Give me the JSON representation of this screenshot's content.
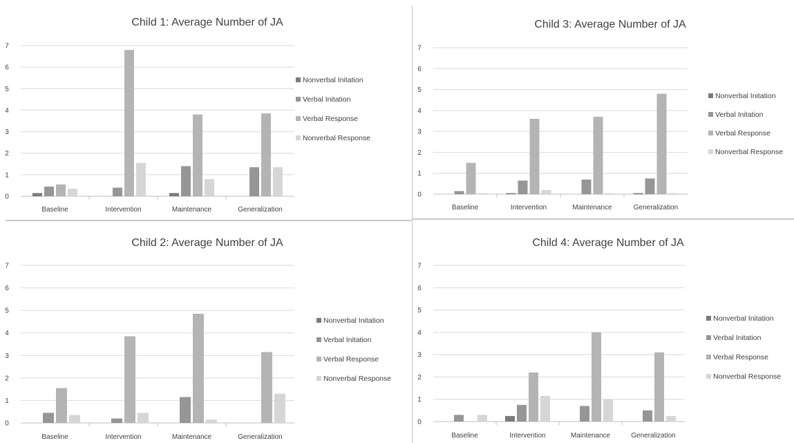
{
  "legend_entries": [
    "Nonverbal Initation",
    "Verbal Initation",
    "Verbal Response",
    "Nonverbal Response"
  ],
  "series_colors": [
    "#7b7b7b",
    "#969696",
    "#b4b4b4",
    "#d6d6d6"
  ],
  "chart_data": [
    {
      "type": "bar",
      "title": "Child 1: Average Number of JA",
      "categories": [
        "Baseline",
        "Intervention",
        "Maintenance",
        "Generalization"
      ],
      "yticks": [
        "0",
        "1",
        "2",
        "3",
        "4",
        "5",
        "6",
        "7"
      ],
      "ylim": [
        0,
        7
      ],
      "grid": true,
      "legend_position": "right",
      "series": [
        {
          "name": "Nonverbal Initation",
          "values": [
            0.15,
            0,
            0.15,
            0
          ]
        },
        {
          "name": "Verbal Initation",
          "values": [
            0.45,
            0.4,
            1.4,
            1.35
          ]
        },
        {
          "name": "Verbal Response",
          "values": [
            0.55,
            6.8,
            3.8,
            3.85
          ]
        },
        {
          "name": "Nonverbal Response",
          "values": [
            0.35,
            1.55,
            0.8,
            1.35
          ]
        }
      ]
    },
    {
      "type": "bar",
      "title": "Child 3: Average Number of JA",
      "categories": [
        "Baseline",
        "Intervention",
        "Maintenance",
        "Generalization"
      ],
      "yticks": [
        "0",
        "1",
        "2",
        "3",
        "4",
        "5",
        "6",
        "7"
      ],
      "ylim": [
        0,
        7
      ],
      "grid": true,
      "legend_position": "right",
      "series": [
        {
          "name": "Nonverbal Initation",
          "values": [
            0,
            0.05,
            0,
            0.05
          ]
        },
        {
          "name": "Verbal Initation",
          "values": [
            0.15,
            0.65,
            0.7,
            0.75
          ]
        },
        {
          "name": "Verbal Response",
          "values": [
            1.5,
            3.6,
            3.7,
            4.8
          ]
        },
        {
          "name": "Nonverbal Response",
          "values": [
            0.05,
            0.2,
            0.05,
            0.05
          ]
        }
      ]
    },
    {
      "type": "bar",
      "title": "Child 2: Average Number of JA",
      "categories": [
        "Baseline",
        "Intervention",
        "Maintenance",
        "Generalization"
      ],
      "yticks": [
        "0",
        "1",
        "2",
        "3",
        "4",
        "5",
        "6",
        "7"
      ],
      "ylim": [
        0,
        7
      ],
      "grid": true,
      "legend_position": "right",
      "series": [
        {
          "name": "Nonverbal Initation",
          "values": [
            0,
            0,
            0,
            0
          ]
        },
        {
          "name": "Verbal Initation",
          "values": [
            0.45,
            0.2,
            1.15,
            0
          ]
        },
        {
          "name": "Verbal Response",
          "values": [
            1.55,
            3.85,
            4.85,
            3.15
          ]
        },
        {
          "name": "Nonverbal Response",
          "values": [
            0.35,
            0.45,
            0.15,
            1.3
          ]
        }
      ]
    },
    {
      "type": "bar",
      "title": "Child 4: Average Number of JA",
      "categories": [
        "Baseline",
        "Intervention",
        "Maintenance",
        "Generalization"
      ],
      "yticks": [
        "0",
        "1",
        "2",
        "3",
        "4",
        "5",
        "6",
        "7"
      ],
      "ylim": [
        0,
        7
      ],
      "grid": true,
      "legend_position": "right",
      "series": [
        {
          "name": "Nonverbal Initation",
          "values": [
            0,
            0.25,
            0,
            0
          ]
        },
        {
          "name": "Verbal Initation",
          "values": [
            0.3,
            0.75,
            0.7,
            0.5
          ]
        },
        {
          "name": "Verbal Response",
          "values": [
            0,
            2.2,
            4.0,
            3.1
          ]
        },
        {
          "name": "Nonverbal Response",
          "values": [
            0.3,
            1.15,
            1.0,
            0.25
          ]
        }
      ]
    }
  ]
}
